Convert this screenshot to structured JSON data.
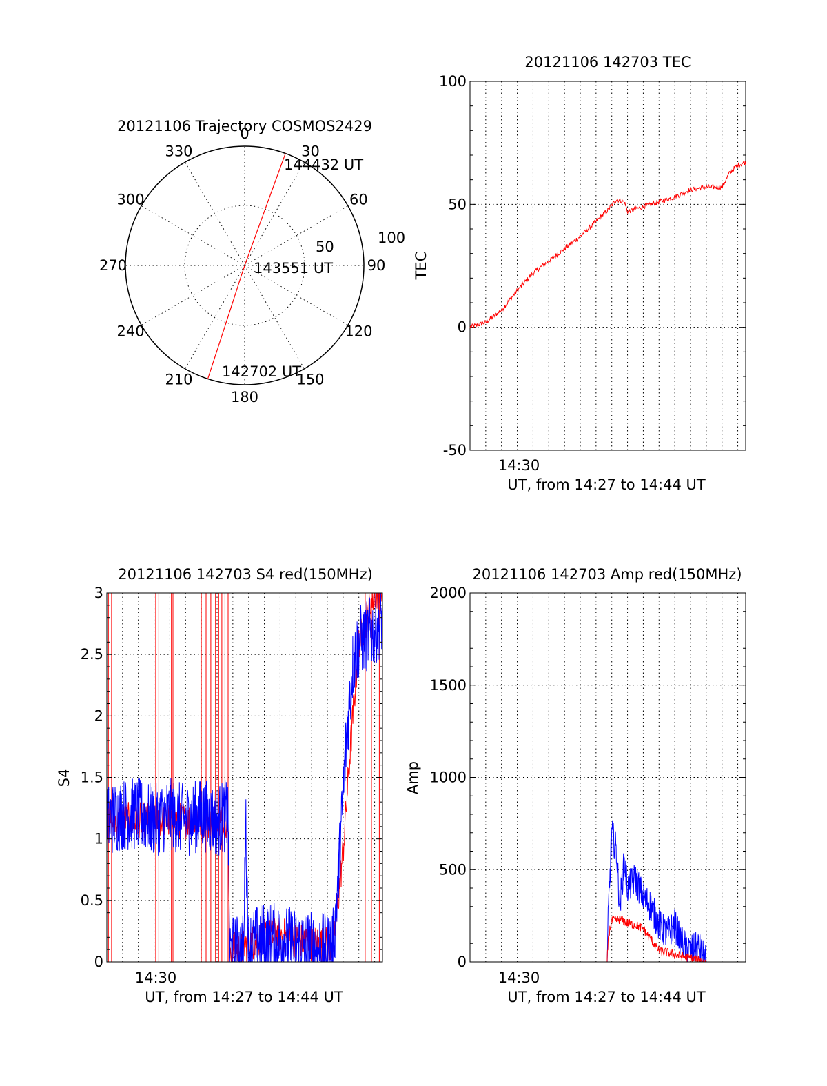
{
  "colors": {
    "red": "#ff0000",
    "blue": "#0000ff"
  },
  "chart_data": [
    {
      "type": "polar",
      "title": "20121106 Trajectory COSMOS2429",
      "angle_labels": [
        "0",
        "30",
        "60",
        "90",
        "120",
        "150",
        "180",
        "210",
        "240",
        "270",
        "300",
        "330"
      ],
      "radial_labels": [
        "50",
        "100"
      ],
      "rlim": [
        0,
        100
      ],
      "grid": true,
      "points": [
        {
          "label": "142702 UT",
          "azimuth": 198,
          "zenith": 90
        },
        {
          "label": "143551 UT",
          "azimuth": 20,
          "zenith": 3
        },
        {
          "label": "144432 UT",
          "azimuth": 20,
          "zenith": 90
        }
      ],
      "series": [
        {
          "color": "red",
          "path": [
            [
              198,
              90
            ],
            [
              198,
              45
            ],
            [
              198,
              5
            ],
            [
              20,
              3
            ],
            [
              20,
              45
            ],
            [
              20,
              90
            ]
          ]
        }
      ]
    },
    {
      "type": "line",
      "title": "20121106 142703 TEC",
      "ylabel": "TEC",
      "xlabel": "UT, from 14:27 to 14:44 UT",
      "xlim": [
        27.0,
        44.5
      ],
      "ylim": [
        -50,
        100
      ],
      "xticklabels": [
        {
          "x": 30,
          "label": "14:30"
        }
      ],
      "yticklabels": [
        "-50",
        "0",
        "50",
        "100"
      ],
      "grid": true,
      "series": [
        {
          "color": "red",
          "x": [
            27.0,
            28.0,
            29.0,
            30.0,
            31.0,
            32.0,
            33.0,
            34.0,
            35.0,
            35.8,
            36.3,
            36.8,
            37.0,
            37.5,
            38.0,
            39.0,
            40.0,
            41.0,
            42.0,
            43.0,
            43.5,
            44.0,
            44.5
          ],
          "y": [
            0,
            2,
            7,
            15,
            22,
            27,
            32,
            37,
            43,
            48,
            52,
            51,
            47,
            48,
            49,
            51,
            53,
            56,
            57,
            57,
            63,
            66,
            67
          ],
          "noise": 1.0
        }
      ]
    },
    {
      "type": "line",
      "title": "20121106 142703 S4 red(150MHz)",
      "ylabel": "S4",
      "xlabel": "UT, from 14:27 to 14:44 UT",
      "xlim": [
        27.0,
        44.5
      ],
      "ylim": [
        0,
        3
      ],
      "xticklabels": [
        {
          "x": 30,
          "label": "14:30"
        }
      ],
      "yticklabels": [
        "0",
        "0.5",
        "1",
        "1.5",
        "2",
        "2.5",
        "3"
      ],
      "grid": true,
      "series": [
        {
          "color": "red",
          "x": [
            27.0,
            34.7,
            34.8,
            35.0,
            35.6,
            35.7,
            36.0,
            37.0,
            38.0,
            39.0,
            40.0,
            41.0,
            41.4,
            42.0,
            42.5,
            43.0,
            44.0,
            44.5
          ],
          "y": [
            1.15,
            1.15,
            0.1,
            0.1,
            0.1,
            0.12,
            0.15,
            0.2,
            0.22,
            0.18,
            0.16,
            0.14,
            0.15,
            0.9,
            1.8,
            2.6,
            3.0,
            3.0
          ],
          "noise": 0.15,
          "spikes": [
            27.1,
            27.3,
            30.1,
            30.3,
            31.1,
            31.2,
            33.0,
            33.3,
            33.6,
            33.9,
            34.1,
            34.3,
            34.5,
            34.7,
            43.4,
            43.8,
            44.3
          ]
        },
        {
          "color": "blue",
          "x": [
            27.0,
            28.0,
            29.0,
            30.0,
            31.0,
            32.0,
            33.0,
            34.0,
            34.7,
            34.8,
            35.0,
            35.7,
            35.8,
            36.0,
            37.0,
            38.0,
            39.0,
            40.0,
            41.0,
            41.4,
            41.8,
            42.2,
            42.6,
            43.0,
            44.0,
            44.5
          ],
          "y": [
            1.15,
            1.2,
            1.2,
            1.15,
            1.2,
            1.15,
            1.2,
            1.15,
            1.2,
            0.08,
            0.08,
            0.1,
            1.2,
            0.12,
            0.2,
            0.18,
            0.15,
            0.12,
            0.1,
            0.15,
            0.9,
            1.8,
            2.4,
            2.6,
            2.7,
            2.8
          ],
          "noise": 0.3
        }
      ]
    },
    {
      "type": "line",
      "title": "20121106 142703 Amp red(150MHz)",
      "ylabel": "Amp",
      "xlabel": "UT, from 14:27 to 14:44 UT",
      "xlim": [
        27.0,
        44.5
      ],
      "ylim": [
        0,
        2000
      ],
      "xticklabels": [
        {
          "x": 30,
          "label": "14:30"
        }
      ],
      "yticklabels": [
        "0",
        "500",
        "1000",
        "1500",
        "2000"
      ],
      "grid": true,
      "series": [
        {
          "color": "red",
          "x": [
            27.0,
            35.7,
            35.8,
            36.0,
            36.5,
            37.0,
            37.5,
            38.0,
            38.5,
            39.0,
            40.0,
            41.0,
            41.5,
            42.0,
            44.5
          ],
          "y": [
            0,
            0,
            150,
            220,
            230,
            210,
            200,
            180,
            120,
            60,
            40,
            20,
            10,
            0,
            0
          ],
          "noise": 25
        },
        {
          "color": "blue",
          "x": [
            27.0,
            35.7,
            35.8,
            36.0,
            36.3,
            36.5,
            36.8,
            37.0,
            37.5,
            38.0,
            38.5,
            39.0,
            39.5,
            40.0,
            40.5,
            41.0,
            41.5,
            42.0,
            44.5
          ],
          "y": [
            0,
            0,
            300,
            700,
            600,
            300,
            550,
            400,
            450,
            350,
            300,
            200,
            150,
            200,
            100,
            60,
            80,
            0,
            0
          ],
          "noise": 90
        }
      ]
    }
  ]
}
